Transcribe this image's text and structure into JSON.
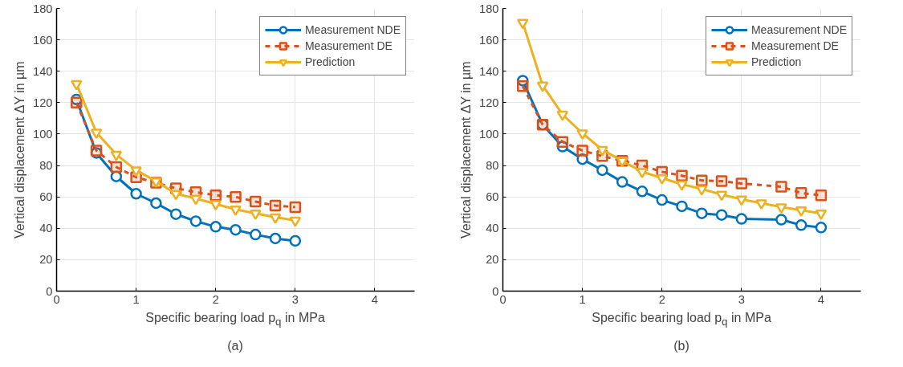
{
  "chart_data": [
    {
      "type": "line",
      "xlabel": "Specific bearing load p$_{q}$ in MPa",
      "ylabel": "Vertical displacement ΔY in µm",
      "annotations": [
        "(a)"
      ],
      "xlim": [
        0,
        4.5
      ],
      "ylim": [
        0,
        180
      ],
      "xticks": [
        0,
        1,
        2,
        3,
        4
      ],
      "yticks": [
        0,
        20,
        40,
        60,
        80,
        100,
        120,
        140,
        160,
        180
      ],
      "grid": true,
      "legend": "top right",
      "x": [
        0.25,
        0.5,
        0.75,
        1,
        1.25,
        1.5,
        1.75,
        2,
        2.25,
        2.5,
        2.75,
        3
      ],
      "series": [
        {
          "name": "Measurement NDE",
          "color": "#0072bd",
          "marker": "circle",
          "line_style": "solid",
          "values": [
            122,
            88,
            73,
            62,
            56,
            49,
            44.5,
            41,
            39,
            36,
            33.5,
            32
          ]
        },
        {
          "name": "Measurement DE",
          "color": "#d95319",
          "marker": "square",
          "line_style": "dashed",
          "values": [
            120,
            89.5,
            79,
            72.5,
            69,
            65.5,
            63,
            61,
            60,
            57,
            54.5,
            53.5
          ]
        },
        {
          "name": "Prediction",
          "color": "#edb120",
          "marker": "triangle",
          "line_style": "solid",
          "values": [
            132,
            101,
            87,
            77,
            70,
            62,
            59,
            55.5,
            52,
            49.5,
            47,
            45
          ]
        }
      ]
    },
    {
      "type": "line",
      "xlabel": "Specific bearing load p$_{q}$ in MPa",
      "ylabel": "Vertical displacement ΔY in µm",
      "annotations": [
        "(b)"
      ],
      "xlim": [
        0,
        4.5
      ],
      "ylim": [
        0,
        180
      ],
      "xticks": [
        0,
        1,
        2,
        3,
        4
      ],
      "yticks": [
        0,
        20,
        40,
        60,
        80,
        100,
        120,
        140,
        160,
        180
      ],
      "grid": true,
      "legend": "top right",
      "x": [
        0.25,
        0.5,
        0.75,
        1,
        1.25,
        1.5,
        1.75,
        2,
        2.25,
        2.5,
        2.75,
        3,
        3.25,
        3.5,
        3.75,
        4
      ],
      "series": [
        {
          "name": "Measurement NDE",
          "color": "#0072bd",
          "marker": "circle",
          "line_style": "solid",
          "x": [
            0.25,
            0.5,
            0.75,
            1,
            1.25,
            1.5,
            1.75,
            2,
            2.25,
            2.5,
            2.75,
            3,
            3.5,
            3.75,
            4
          ],
          "values": [
            134,
            106,
            92,
            84,
            77,
            69.5,
            63.5,
            58,
            54,
            49.5,
            48.5,
            46,
            45.5,
            42,
            40.5
          ]
        },
        {
          "name": "Measurement DE",
          "color": "#d95319",
          "marker": "square",
          "line_style": "dashed",
          "x": [
            0.25,
            0.5,
            0.75,
            1,
            1.25,
            1.5,
            1.75,
            2,
            2.25,
            2.5,
            2.75,
            3,
            3.5,
            3.75,
            4
          ],
          "values": [
            130.5,
            106,
            95,
            89.5,
            86,
            83,
            80,
            76,
            73.5,
            70.5,
            70,
            68.5,
            66.5,
            62.5,
            61
          ]
        },
        {
          "name": "Prediction",
          "color": "#edb120",
          "marker": "triangle",
          "line_style": "solid",
          "values": [
            171,
            131,
            112.5,
            100.5,
            90,
            83,
            76,
            72,
            68,
            65,
            61.5,
            58.5,
            56,
            53.5,
            51.5,
            49.5
          ]
        }
      ]
    }
  ]
}
